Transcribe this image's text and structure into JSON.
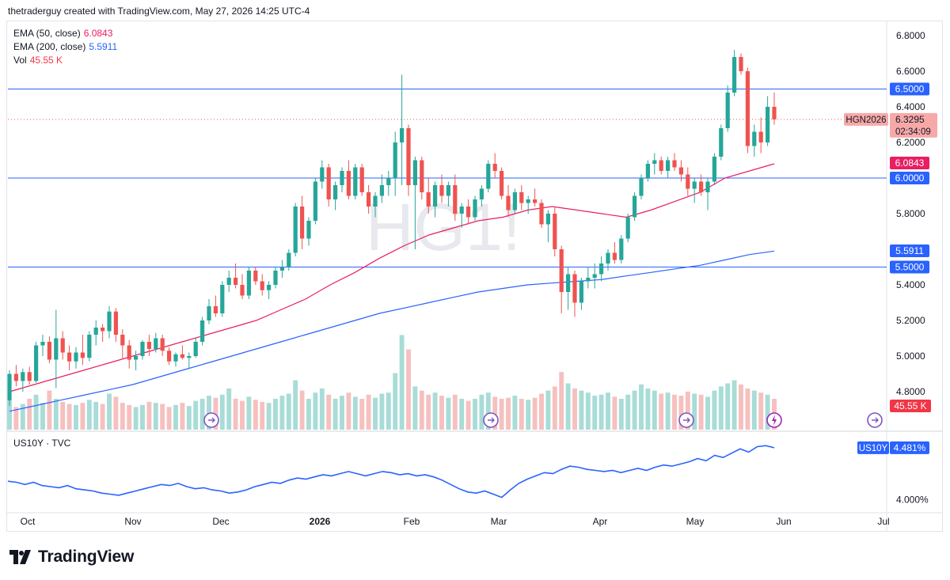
{
  "header": {
    "text": "thetraderguy created with TradingView.com, May 27, 2026 14:25 UTC-4"
  },
  "legend": {
    "ema50": {
      "label": "EMA (50, close)",
      "value": "6.0843",
      "color": "#e91e63"
    },
    "ema200": {
      "label": "EMA (200, close)",
      "value": "5.5911",
      "color": "#2962ff"
    },
    "vol": {
      "label": "Vol",
      "value": "45.55 K",
      "color": "#f23645"
    }
  },
  "watermark": "HG1!",
  "footer": {
    "brand": "TradingView"
  },
  "colors": {
    "up": "#26a69a",
    "down": "#ef5350",
    "level": "#2962ff",
    "ema50": "#e91e63",
    "ema200": "#2962ff",
    "us10y": "#2962ff"
  },
  "chart_data": [
    {
      "type": "candlestick",
      "symbol": "HGN2026",
      "x_tick_labels": [
        "Oct",
        "Nov",
        "Dec",
        "2026",
        "Feb",
        "Mar",
        "Apr",
        "May",
        "Jun",
        "Jul"
      ],
      "y_tick_labels": [
        "6.8000",
        "6.6000",
        "6.4000",
        "6.2000",
        "6.0000",
        "5.8000",
        "5.6000",
        "5.4000",
        "5.2000",
        "5.0000",
        "4.8000"
      ],
      "ylim": [
        4.76,
        6.92
      ],
      "y_tick_values": [
        6.8,
        6.6,
        6.4,
        6.2,
        6.0,
        5.8,
        5.6,
        5.4,
        5.2,
        5.0,
        4.8
      ],
      "horizontal_levels": [
        6.5,
        6.0,
        5.5
      ],
      "level_labels": [
        "6.5000",
        "6.0000",
        "5.5000"
      ],
      "last_price": {
        "label": "HGN2026",
        "value": "6.3295",
        "countdown": "02:34:09",
        "price": 6.3295
      },
      "ema50_label": "6.0843",
      "ema200_label": "5.5911",
      "volume_label": "45.55 K",
      "ohlc": [
        [
          4.75,
          4.92,
          4.72,
          4.9
        ],
        [
          4.9,
          4.95,
          4.83,
          4.86
        ],
        [
          4.86,
          4.93,
          4.8,
          4.91
        ],
        [
          4.91,
          4.94,
          4.84,
          4.86
        ],
        [
          4.86,
          5.08,
          4.85,
          5.06
        ],
        [
          5.06,
          5.12,
          5.0,
          5.08
        ],
        [
          5.08,
          5.11,
          4.96,
          4.98
        ],
        [
          4.98,
          5.26,
          4.82,
          5.1
        ],
        [
          5.1,
          5.14,
          4.98,
          5.02
        ],
        [
          5.02,
          5.06,
          4.92,
          4.97
        ],
        [
          4.97,
          5.05,
          4.93,
          5.02
        ],
        [
          5.02,
          5.12,
          4.95,
          4.99
        ],
        [
          4.99,
          5.14,
          4.97,
          5.12
        ],
        [
          5.12,
          5.2,
          5.06,
          5.16
        ],
        [
          5.16,
          5.18,
          5.08,
          5.14
        ],
        [
          5.14,
          5.28,
          5.1,
          5.25
        ],
        [
          5.25,
          5.27,
          5.08,
          5.12
        ],
        [
          5.12,
          5.15,
          4.98,
          5.06
        ],
        [
          5.06,
          5.09,
          4.93,
          4.98
        ],
        [
          4.98,
          5.03,
          4.92,
          5.0
        ],
        [
          5.0,
          5.09,
          4.98,
          5.08
        ],
        [
          5.08,
          5.12,
          5.0,
          5.04
        ],
        [
          5.04,
          5.13,
          5.02,
          5.1
        ],
        [
          5.1,
          5.12,
          5.0,
          5.03
        ],
        [
          5.03,
          5.05,
          4.95,
          4.97
        ],
        [
          4.97,
          5.02,
          4.94,
          5.01
        ],
        [
          5.01,
          5.06,
          4.98,
          4.99
        ],
        [
          4.99,
          5.02,
          4.93,
          5.0
        ],
        [
          5.0,
          5.1,
          4.99,
          5.08
        ],
        [
          5.08,
          5.22,
          5.06,
          5.2
        ],
        [
          5.2,
          5.32,
          5.18,
          5.28
        ],
        [
          5.28,
          5.34,
          5.22,
          5.24
        ],
        [
          5.24,
          5.42,
          5.22,
          5.4
        ],
        [
          5.4,
          5.48,
          5.36,
          5.44
        ],
        [
          5.44,
          5.52,
          5.38,
          5.4
        ],
        [
          5.4,
          5.46,
          5.32,
          5.34
        ],
        [
          5.34,
          5.5,
          5.32,
          5.48
        ],
        [
          5.48,
          5.5,
          5.4,
          5.42
        ],
        [
          5.42,
          5.46,
          5.34,
          5.37
        ],
        [
          5.37,
          5.42,
          5.32,
          5.4
        ],
        [
          5.4,
          5.5,
          5.38,
          5.48
        ],
        [
          5.48,
          5.54,
          5.44,
          5.5
        ],
        [
          5.5,
          5.6,
          5.48,
          5.58
        ],
        [
          5.58,
          5.86,
          5.56,
          5.84
        ],
        [
          5.84,
          5.9,
          5.6,
          5.66
        ],
        [
          5.66,
          5.78,
          5.62,
          5.76
        ],
        [
          5.76,
          6.0,
          5.74,
          5.98
        ],
        [
          5.98,
          6.1,
          5.94,
          6.06
        ],
        [
          6.06,
          6.08,
          5.84,
          5.88
        ],
        [
          5.88,
          5.98,
          5.82,
          5.96
        ],
        [
          5.96,
          6.06,
          5.92,
          6.04
        ],
        [
          6.04,
          6.1,
          5.88,
          5.9
        ],
        [
          5.9,
          6.08,
          5.88,
          6.06
        ],
        [
          6.06,
          6.08,
          5.9,
          5.92
        ],
        [
          5.92,
          5.96,
          5.8,
          5.84
        ],
        [
          5.84,
          5.92,
          5.78,
          5.9
        ],
        [
          5.9,
          6.02,
          5.86,
          5.96
        ],
        [
          5.96,
          6.04,
          5.9,
          6.0
        ],
        [
          6.0,
          6.26,
          5.9,
          6.2
        ],
        [
          6.2,
          6.58,
          5.96,
          6.28
        ],
        [
          6.28,
          6.3,
          5.9,
          5.96
        ],
        [
          5.96,
          6.12,
          5.6,
          6.1
        ],
        [
          6.1,
          6.12,
          5.88,
          5.92
        ],
        [
          5.92,
          6.0,
          5.8,
          5.84
        ],
        [
          5.84,
          5.98,
          5.78,
          5.96
        ],
        [
          5.96,
          6.02,
          5.86,
          5.9
        ],
        [
          5.9,
          5.98,
          5.84,
          5.96
        ],
        [
          5.96,
          6.02,
          5.76,
          5.8
        ],
        [
          5.8,
          5.86,
          5.72,
          5.84
        ],
        [
          5.84,
          5.88,
          5.74,
          5.78
        ],
        [
          5.78,
          5.9,
          5.76,
          5.88
        ],
        [
          5.88,
          5.96,
          5.84,
          5.94
        ],
        [
          5.94,
          6.1,
          5.92,
          6.08
        ],
        [
          6.08,
          6.14,
          6.0,
          6.04
        ],
        [
          6.04,
          6.06,
          5.88,
          5.9
        ],
        [
          5.9,
          5.96,
          5.78,
          5.82
        ],
        [
          5.82,
          5.94,
          5.8,
          5.92
        ],
        [
          5.92,
          5.96,
          5.82,
          5.86
        ],
        [
          5.86,
          5.9,
          5.8,
          5.88
        ],
        [
          5.88,
          5.94,
          5.84,
          5.86
        ],
        [
          5.86,
          5.88,
          5.72,
          5.74
        ],
        [
          5.74,
          5.82,
          5.64,
          5.8
        ],
        [
          5.8,
          5.84,
          5.56,
          5.6
        ],
        [
          5.6,
          5.62,
          5.24,
          5.36
        ],
        [
          5.36,
          5.5,
          5.26,
          5.46
        ],
        [
          5.46,
          5.48,
          5.22,
          5.3
        ],
        [
          5.3,
          5.44,
          5.26,
          5.42
        ],
        [
          5.42,
          5.5,
          5.38,
          5.44
        ],
        [
          5.44,
          5.52,
          5.38,
          5.46
        ],
        [
          5.46,
          5.56,
          5.42,
          5.52
        ],
        [
          5.52,
          5.6,
          5.48,
          5.58
        ],
        [
          5.58,
          5.64,
          5.52,
          5.54
        ],
        [
          5.54,
          5.68,
          5.52,
          5.66
        ],
        [
          5.66,
          5.8,
          5.64,
          5.78
        ],
        [
          5.78,
          5.92,
          5.76,
          5.9
        ],
        [
          5.9,
          6.02,
          5.88,
          6.0
        ],
        [
          6.0,
          6.1,
          5.98,
          6.08
        ],
        [
          6.08,
          6.14,
          6.02,
          6.1
        ],
        [
          6.1,
          6.12,
          6.02,
          6.04
        ],
        [
          6.04,
          6.12,
          6.0,
          6.1
        ],
        [
          6.1,
          6.14,
          6.04,
          6.06
        ],
        [
          6.06,
          6.1,
          5.98,
          6.02
        ],
        [
          6.02,
          6.06,
          5.9,
          5.94
        ],
        [
          5.94,
          6.0,
          5.86,
          5.98
        ],
        [
          5.98,
          6.02,
          5.9,
          5.92
        ],
        [
          5.92,
          6.0,
          5.82,
          5.98
        ],
        [
          5.98,
          6.14,
          5.96,
          6.12
        ],
        [
          6.12,
          6.3,
          6.1,
          6.28
        ],
        [
          6.28,
          6.52,
          6.26,
          6.48
        ],
        [
          6.48,
          6.72,
          6.46,
          6.68
        ],
        [
          6.68,
          6.7,
          6.58,
          6.6
        ],
        [
          6.6,
          6.62,
          6.14,
          6.18
        ],
        [
          6.18,
          6.3,
          6.12,
          6.26
        ],
        [
          6.26,
          6.34,
          6.14,
          6.2
        ],
        [
          6.2,
          6.46,
          6.18,
          6.4
        ],
        [
          6.4,
          6.48,
          6.3,
          6.3295
        ]
      ],
      "ema50": [
        4.8,
        4.84,
        4.88,
        4.92,
        4.96,
        5.0,
        5.04,
        5.08,
        5.12,
        5.16,
        5.2,
        5.26,
        5.32,
        5.4,
        5.47,
        5.55,
        5.62,
        5.68,
        5.72,
        5.76,
        5.78,
        5.82,
        5.84,
        5.82,
        5.8,
        5.78,
        5.82,
        5.87,
        5.92,
        6.0,
        6.04,
        6.08
      ],
      "ema200": [
        4.69,
        4.72,
        4.75,
        4.78,
        4.81,
        4.84,
        4.88,
        4.92,
        4.96,
        5.0,
        5.04,
        5.08,
        5.12,
        5.16,
        5.2,
        5.24,
        5.27,
        5.3,
        5.33,
        5.36,
        5.38,
        5.4,
        5.41,
        5.42,
        5.43,
        5.45,
        5.47,
        5.49,
        5.51,
        5.54,
        5.57,
        5.59
      ],
      "volume": [
        28,
        22,
        25,
        30,
        34,
        26,
        38,
        30,
        27,
        25,
        24,
        26,
        29,
        27,
        25,
        35,
        32,
        26,
        24,
        22,
        24,
        27,
        26,
        25,
        22,
        24,
        26,
        23,
        28,
        30,
        33,
        31,
        34,
        40,
        30,
        28,
        32,
        29,
        27,
        26,
        30,
        33,
        35,
        48,
        38,
        30,
        36,
        40,
        34,
        30,
        33,
        36,
        32,
        30,
        34,
        31,
        35,
        36,
        55,
        92,
        78,
        42,
        38,
        34,
        36,
        33,
        31,
        34,
        30,
        28,
        30,
        34,
        36,
        32,
        30,
        31,
        33,
        30,
        29,
        31,
        35,
        38,
        42,
        56,
        45,
        40,
        38,
        36,
        33,
        34,
        36,
        32,
        30,
        34,
        38,
        44,
        40,
        38,
        35,
        36,
        34,
        33,
        37,
        35,
        34,
        32,
        38,
        42,
        45,
        48,
        44,
        40,
        38,
        36,
        34,
        30
      ],
      "volume_ylim": [
        0,
        100
      ]
    },
    {
      "type": "line",
      "symbol": "US10Y",
      "title": "US10Y · TVC",
      "last_value_label": "4.481%",
      "y_tick_labels": [
        "4.000%"
      ],
      "y_tick_values": [
        4.0
      ],
      "ylim": [
        3.9,
        4.56
      ],
      "values": [
        4.17,
        4.16,
        4.14,
        4.16,
        4.13,
        4.12,
        4.11,
        4.13,
        4.1,
        4.09,
        4.08,
        4.06,
        4.05,
        4.04,
        4.06,
        4.08,
        4.1,
        4.12,
        4.14,
        4.13,
        4.15,
        4.12,
        4.1,
        4.11,
        4.09,
        4.08,
        4.06,
        4.07,
        4.09,
        4.12,
        4.14,
        4.16,
        4.15,
        4.18,
        4.2,
        4.19,
        4.21,
        4.23,
        4.22,
        4.24,
        4.26,
        4.24,
        4.22,
        4.24,
        4.26,
        4.25,
        4.23,
        4.24,
        4.22,
        4.23,
        4.21,
        4.18,
        4.14,
        4.1,
        4.07,
        4.06,
        4.08,
        4.05,
        4.02,
        4.09,
        4.15,
        4.19,
        4.22,
        4.25,
        4.24,
        4.28,
        4.31,
        4.3,
        4.28,
        4.27,
        4.26,
        4.27,
        4.25,
        4.27,
        4.29,
        4.27,
        4.3,
        4.32,
        4.31,
        4.33,
        4.35,
        4.38,
        4.36,
        4.41,
        4.39,
        4.43,
        4.47,
        4.44,
        4.49,
        4.5,
        4.48
      ]
    }
  ]
}
